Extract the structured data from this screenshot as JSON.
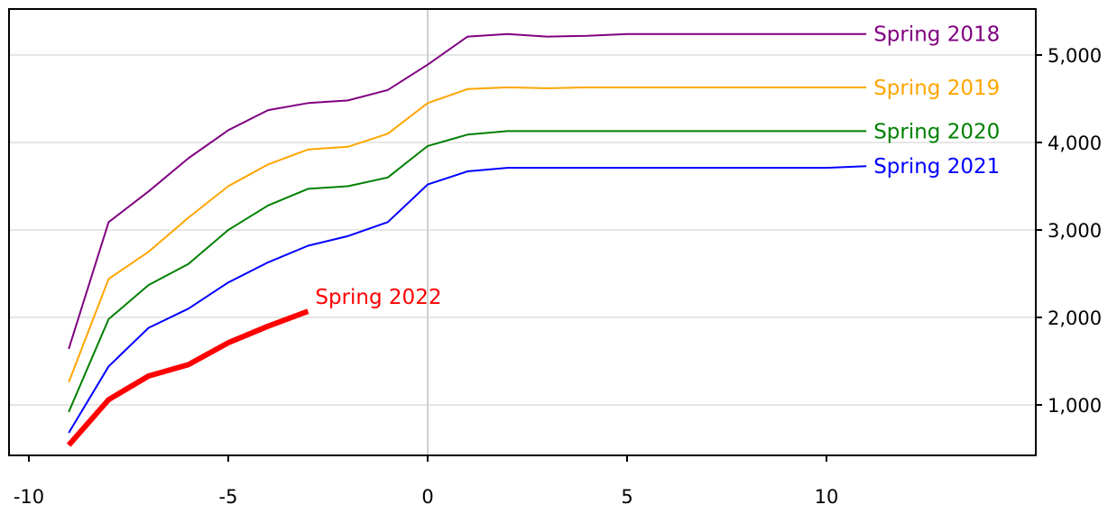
{
  "chart_data": {
    "type": "line",
    "title": "",
    "xlabel": "",
    "ylabel": "",
    "xlim": [
      -10,
      15
    ],
    "ylim": [
      400,
      5500
    ],
    "grid": "horizontal",
    "x_ticks": [
      -10,
      -5,
      0,
      5,
      10
    ],
    "x_tick_labels": [
      "-10",
      "-5",
      "0",
      "5",
      "10"
    ],
    "y_ticks": [
      1000,
      2000,
      3000,
      4000,
      5000
    ],
    "y_tick_labels": [
      "1,000",
      "2,000",
      "3,000",
      "4,000",
      "5,000"
    ],
    "y_axis_side": "right",
    "series": [
      {
        "name": "Spring 2018",
        "color": "#800080",
        "width": 2,
        "x": [
          -9,
          -8,
          -7,
          -6,
          -5,
          -4,
          -3,
          -2,
          -1,
          0,
          1,
          2,
          3,
          4,
          5,
          6,
          7,
          8,
          9,
          10,
          11
        ],
        "values": [
          1640,
          3090,
          3440,
          3820,
          4140,
          4370,
          4450,
          4480,
          4600,
          4890,
          5210,
          5240,
          5210,
          5220,
          5240,
          5240,
          5240,
          5240,
          5240,
          5240,
          5240
        ]
      },
      {
        "name": "Spring 2019",
        "color": "#ffa500",
        "width": 2,
        "x": [
          -9,
          -8,
          -7,
          -6,
          -5,
          -4,
          -3,
          -2,
          -1,
          0,
          1,
          2,
          3,
          4,
          5,
          6,
          7,
          8,
          9,
          10,
          11
        ],
        "values": [
          1260,
          2440,
          2750,
          3140,
          3500,
          3750,
          3920,
          3950,
          4100,
          4450,
          4610,
          4630,
          4620,
          4630,
          4630,
          4630,
          4630,
          4630,
          4630,
          4630,
          4630
        ]
      },
      {
        "name": "Spring 2020",
        "color": "#008000",
        "width": 2,
        "x": [
          -9,
          -8,
          -7,
          -6,
          -5,
          -4,
          -3,
          -2,
          -1,
          0,
          1,
          2,
          3,
          4,
          5,
          6,
          7,
          8,
          9,
          10,
          11
        ],
        "values": [
          920,
          1980,
          2370,
          2610,
          3000,
          3280,
          3470,
          3500,
          3600,
          3960,
          4090,
          4130,
          4130,
          4130,
          4130,
          4130,
          4130,
          4130,
          4130,
          4130,
          4130
        ]
      },
      {
        "name": "Spring 2021",
        "color": "#0000ff",
        "width": 2,
        "x": [
          -9,
          -8,
          -7,
          -6,
          -5,
          -4,
          -3,
          -2,
          -1,
          0,
          1,
          2,
          3,
          4,
          5,
          6,
          7,
          8,
          9,
          10,
          11
        ],
        "values": [
          680,
          1440,
          1880,
          2100,
          2400,
          2630,
          2820,
          2930,
          3090,
          3520,
          3670,
          3710,
          3710,
          3710,
          3710,
          3710,
          3710,
          3710,
          3710,
          3710,
          3730
        ]
      },
      {
        "name": "Spring 2022",
        "color": "#ff0000",
        "width": 6,
        "x": [
          -9,
          -8,
          -7,
          -6,
          -5,
          -4,
          -3
        ],
        "values": [
          540,
          1060,
          1330,
          1460,
          1710,
          1900,
          2070
        ]
      }
    ]
  }
}
